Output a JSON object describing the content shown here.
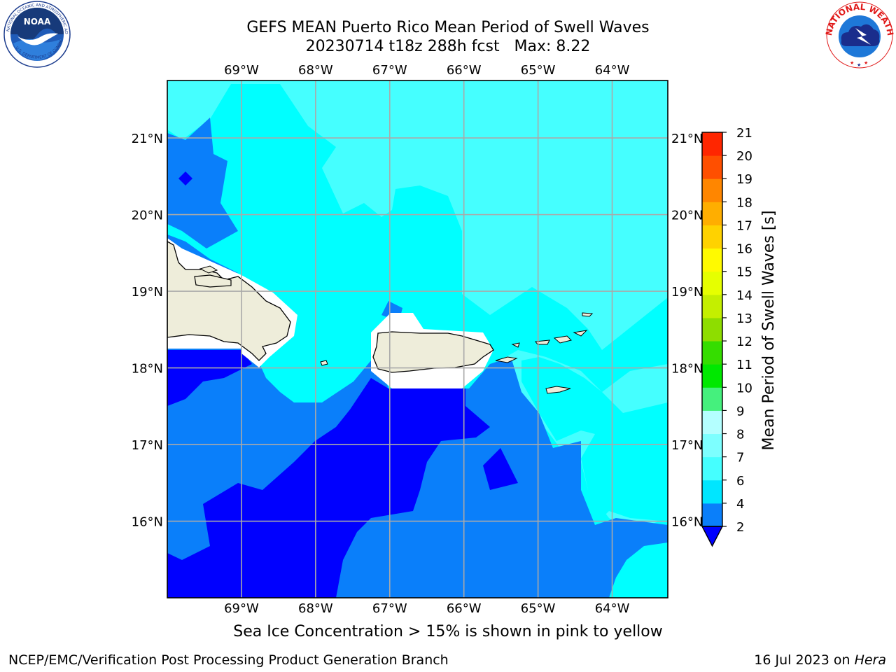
{
  "title_line1": "GEFS MEAN Puerto Rico Mean Period of Swell Waves",
  "title_line2": "20230714 t18z 288h fcst   Max: 8.22",
  "note": "Sea Ice Concentration > 15% is shown in pink to yellow",
  "footer_left": "NCEP/EMC/Verification Post Processing Product Generation Branch",
  "footer_right_date": "16 Jul 2023 on ",
  "footer_right_host": "Hera",
  "logos": {
    "left": "noara-logo",
    "right": "nws-logo"
  },
  "map": {
    "lon_ticks": [
      "69°W",
      "68°W",
      "67°W",
      "66°W",
      "65°W",
      "64°W"
    ],
    "lat_ticks": [
      "21°N",
      "20°N",
      "19°N",
      "18°N",
      "17°N",
      "16°N"
    ],
    "lon_values": [
      -69,
      -68,
      -67,
      -66,
      -65,
      -64
    ],
    "lat_values": [
      21,
      20,
      19,
      18,
      17,
      16
    ],
    "extent": {
      "lon_min": -70,
      "lon_max": -63.25,
      "lat_min": 15,
      "lat_max": 21.75
    }
  },
  "colorbar": {
    "label": "Mean Period of Swell Waves [s]",
    "ticks": [
      "2",
      "4",
      "6",
      "7",
      "8",
      "9",
      "10",
      "11",
      "12",
      "13",
      "14",
      "15",
      "16",
      "17",
      "18",
      "19",
      "20",
      "21"
    ],
    "colors": [
      "#0000ff",
      "#0a7ffa",
      "#00e6ff",
      "#45ffff",
      "#7dffff",
      "#b4ffff",
      "#45f07d",
      "#00e800",
      "#35dd00",
      "#8edd00",
      "#c4ef00",
      "#e6ff00",
      "#fffa00",
      "#ffd200",
      "#ffae00",
      "#ff8600",
      "#ff4f00",
      "#ff2600",
      "#ff0000"
    ]
  },
  "colors": {
    "land": "#eeedda",
    "grid": "#a9a9a9",
    "deep_blue": "#0000ff",
    "mid_blue": "#0a7ffa",
    "cyan": "#00ffff",
    "light_cyan": "#45ffff"
  }
}
